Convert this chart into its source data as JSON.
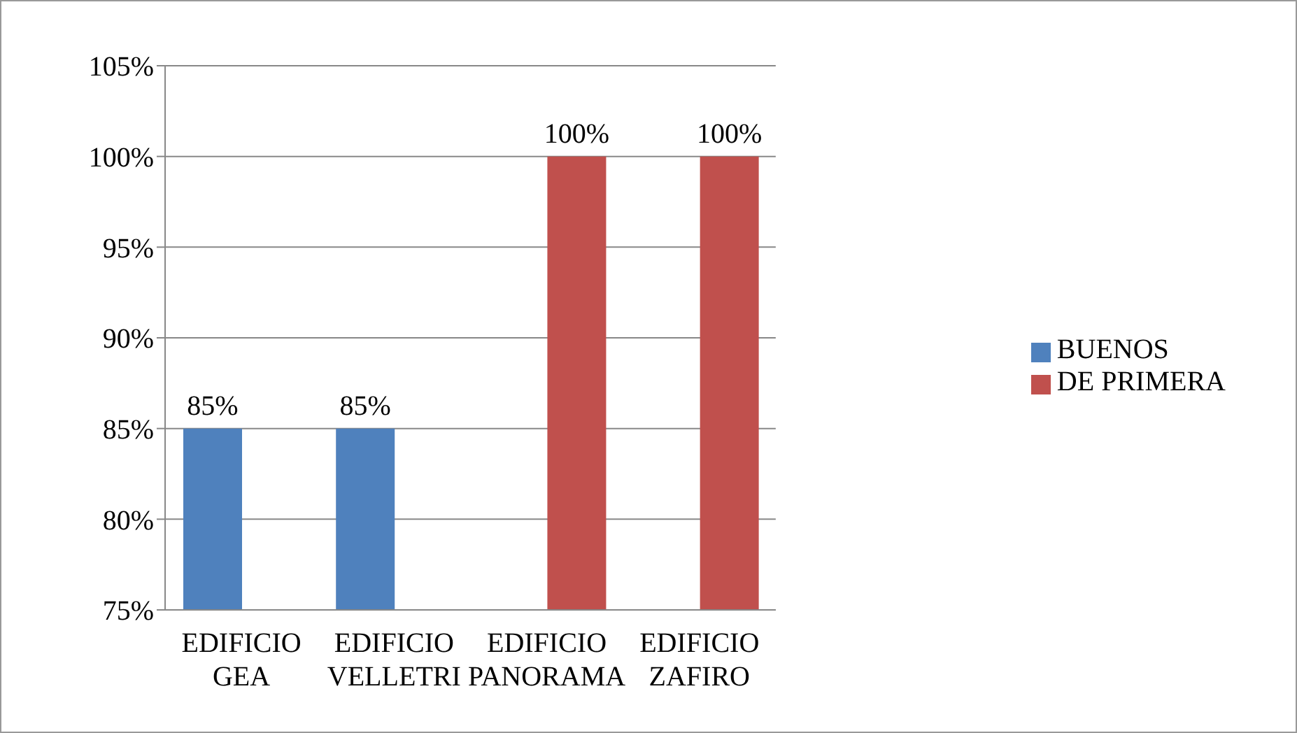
{
  "chart_data": {
    "type": "bar",
    "categories": [
      "EDIFICIO GEA",
      "EDIFICIO VELLETRI",
      "EDIFICIO PANORAMA",
      "EDIFICIO ZAFIRO"
    ],
    "series": [
      {
        "name": "BUENOS",
        "color": "#4f81bd",
        "values": [
          85,
          85,
          null,
          null
        ],
        "value_labels": [
          "85%",
          "85%",
          null,
          null
        ]
      },
      {
        "name": "DE PRIMERA",
        "color": "#c0504d",
        "values": [
          null,
          null,
          100,
          100
        ],
        "value_labels": [
          null,
          null,
          "100%",
          "100%"
        ]
      }
    ],
    "ylim": [
      75,
      105
    ],
    "yticks": [
      {
        "value": 75,
        "label": "75%"
      },
      {
        "value": 80,
        "label": "80%"
      },
      {
        "value": 85,
        "label": "85%"
      },
      {
        "value": 90,
        "label": "90%"
      },
      {
        "value": 95,
        "label": "95%"
      },
      {
        "value": 100,
        "label": "100%"
      },
      {
        "value": 105,
        "label": "105%"
      }
    ],
    "grid": "y",
    "legend": "right"
  }
}
